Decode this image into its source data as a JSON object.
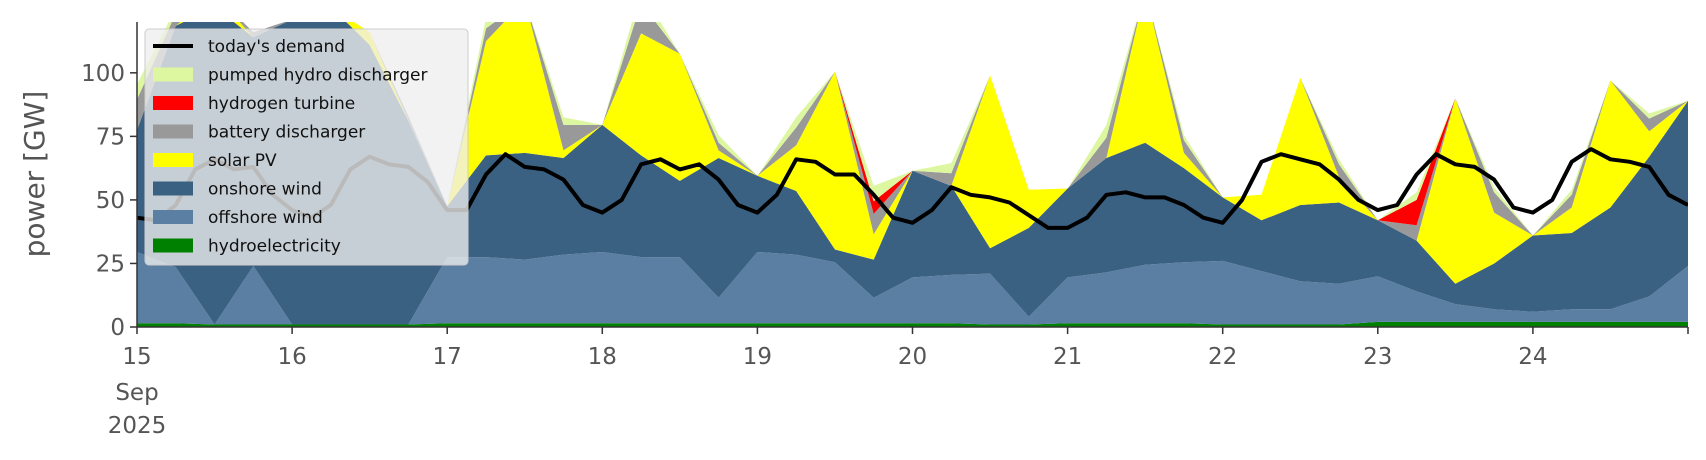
{
  "chart_data": {
    "type": "area",
    "stacked": true,
    "ylabel": "power [GW]",
    "ylim": [
      0,
      120
    ],
    "xlim": [
      15,
      25
    ],
    "yticks": [
      0,
      25,
      50,
      75,
      100
    ],
    "ytick_labels": [
      "0",
      "25",
      "50",
      "75",
      "100"
    ],
    "xticks": [
      15,
      16,
      17,
      18,
      19,
      20,
      21,
      22,
      23,
      24
    ],
    "xtick_labels": [
      "15",
      "16",
      "17",
      "18",
      "19",
      "20",
      "21",
      "22",
      "23",
      "24"
    ],
    "x_sublabels": [
      "Sep",
      "2025"
    ],
    "grid": false,
    "legend_position": "upper-left",
    "x": [
      15.0,
      15.25,
      15.5,
      15.75,
      16.0,
      16.25,
      16.5,
      16.75,
      17.0,
      17.25,
      17.5,
      17.75,
      18.0,
      18.25,
      18.5,
      18.75,
      19.0,
      19.25,
      19.5,
      19.75,
      20.0,
      20.25,
      20.5,
      20.75,
      21.0,
      21.25,
      21.5,
      21.75,
      22.0,
      22.25,
      22.5,
      22.75,
      23.0,
      23.25,
      23.5,
      23.75,
      24.0,
      24.25,
      24.5,
      24.75,
      25.0
    ],
    "series": [
      {
        "name": "hydroelectricity",
        "color": "#008000",
        "values": [
          1.5,
          1.5,
          1.0,
          1.0,
          1.0,
          1.0,
          1.0,
          1.0,
          1.5,
          1.5,
          1.5,
          1.5,
          1.5,
          1.5,
          1.5,
          1.5,
          1.5,
          1.5,
          1.5,
          1.5,
          1.5,
          1.5,
          1.0,
          1.0,
          1.5,
          1.5,
          1.5,
          1.5,
          1.0,
          1.0,
          1.0,
          1.0,
          2.0,
          2.0,
          2.0,
          2.0,
          2.0,
          2.0,
          2.0,
          2.0,
          2.0
        ]
      },
      {
        "name": "offshore wind",
        "color": "#5b7fa3",
        "values": [
          28,
          22,
          0,
          23,
          0,
          0,
          0,
          0,
          26,
          26,
          25,
          27,
          28,
          26,
          26,
          10,
          28,
          27,
          24,
          10,
          18,
          19,
          20,
          3,
          18,
          20,
          23,
          24,
          25,
          21,
          17,
          16,
          18,
          12,
          7,
          5,
          4,
          5,
          5,
          10,
          22
        ]
      },
      {
        "name": "onshore wind",
        "color": "#3b6182",
        "values": [
          48,
          95,
          125,
          90,
          120,
          125,
          110,
          80,
          20,
          40,
          42,
          38,
          50,
          40,
          30,
          55,
          30,
          25,
          5,
          15,
          42,
          35,
          10,
          35,
          35,
          45,
          48,
          37,
          25,
          20,
          30,
          32,
          22,
          20,
          8,
          18,
          30,
          30,
          40,
          55,
          65
        ]
      },
      {
        "name": "solar PV",
        "color": "#ffff00",
        "values": [
          0,
          0,
          5,
          0,
          0,
          0,
          5,
          0,
          0,
          45,
          60,
          3,
          0,
          48,
          50,
          3,
          0,
          18,
          70,
          10,
          0,
          0,
          68,
          15,
          0,
          0,
          60,
          6,
          0,
          10,
          50,
          10,
          0,
          0,
          73,
          20,
          0,
          10,
          50,
          10,
          0
        ]
      },
      {
        "name": "battery discharger",
        "color": "#999999",
        "values": [
          12,
          5,
          0,
          2,
          0,
          0,
          0,
          2,
          0,
          5,
          0,
          10,
          0,
          12,
          0,
          3,
          0,
          7,
          0,
          8,
          0,
          5,
          0,
          0,
          0,
          8,
          0,
          5,
          0,
          0,
          0,
          5,
          0,
          6,
          0,
          8,
          0,
          5,
          0,
          5,
          0
        ]
      },
      {
        "name": "hydrogen turbine",
        "color": "#ff0000",
        "values": [
          0,
          0,
          0,
          0,
          0,
          0,
          0,
          0,
          0,
          0,
          0,
          0,
          0,
          0,
          0,
          0,
          0,
          0,
          0,
          5,
          0,
          0,
          0,
          0,
          0,
          0,
          0,
          0,
          0,
          0,
          0,
          0,
          0,
          10,
          0,
          0,
          0,
          0,
          0,
          0,
          0
        ]
      },
      {
        "name": "pumped hydro discharger",
        "color": "#ddf7a0",
        "values": [
          6,
          2,
          0,
          0,
          0,
          0,
          0,
          0,
          0,
          4,
          0,
          3,
          0,
          5,
          0,
          3,
          0,
          4,
          0,
          6,
          0,
          4,
          0,
          0,
          0,
          5,
          0,
          2,
          0,
          0,
          0,
          2,
          0,
          3,
          0,
          2,
          0,
          2,
          0,
          2,
          0
        ]
      }
    ],
    "line_series": {
      "name": "today's demand",
      "color": "#000000",
      "x": [
        15.0,
        15.125,
        15.25,
        15.375,
        15.5,
        15.625,
        15.75,
        15.875,
        16.0,
        16.125,
        16.25,
        16.375,
        16.5,
        16.625,
        16.75,
        16.875,
        17.0,
        17.125,
        17.25,
        17.375,
        17.5,
        17.625,
        17.75,
        17.875,
        18.0,
        18.125,
        18.25,
        18.375,
        18.5,
        18.625,
        18.75,
        18.875,
        19.0,
        19.125,
        19.25,
        19.375,
        19.5,
        19.625,
        19.75,
        19.875,
        20.0,
        20.125,
        20.25,
        20.375,
        20.5,
        20.625,
        20.75,
        20.875,
        21.0,
        21.125,
        21.25,
        21.375,
        21.5,
        21.625,
        21.75,
        21.875,
        22.0,
        22.125,
        22.25,
        22.375,
        22.5,
        22.625,
        22.75,
        22.875,
        23.0,
        23.125,
        23.25,
        23.375,
        23.5,
        23.625,
        23.75,
        23.875,
        24.0,
        24.125,
        24.25,
        24.375,
        24.5,
        24.625,
        24.75,
        24.875,
        25.0
      ],
      "values": [
        43,
        42,
        48,
        62,
        66,
        62,
        63,
        52,
        46,
        43,
        48,
        62,
        67,
        64,
        63,
        57,
        46,
        46,
        60,
        68,
        63,
        62,
        58,
        48,
        45,
        50,
        64,
        66,
        62,
        64,
        58,
        48,
        45,
        52,
        66,
        65,
        60,
        60,
        52,
        43,
        41,
        46,
        55,
        52,
        51,
        49,
        44,
        39,
        39,
        43,
        52,
        53,
        51,
        51,
        48,
        43,
        41,
        50,
        65,
        68,
        66,
        64,
        58,
        50,
        46,
        48,
        60,
        68,
        64,
        63,
        58,
        47,
        45,
        50,
        65,
        70,
        66,
        65,
        63,
        52,
        48
      ]
    }
  }
}
